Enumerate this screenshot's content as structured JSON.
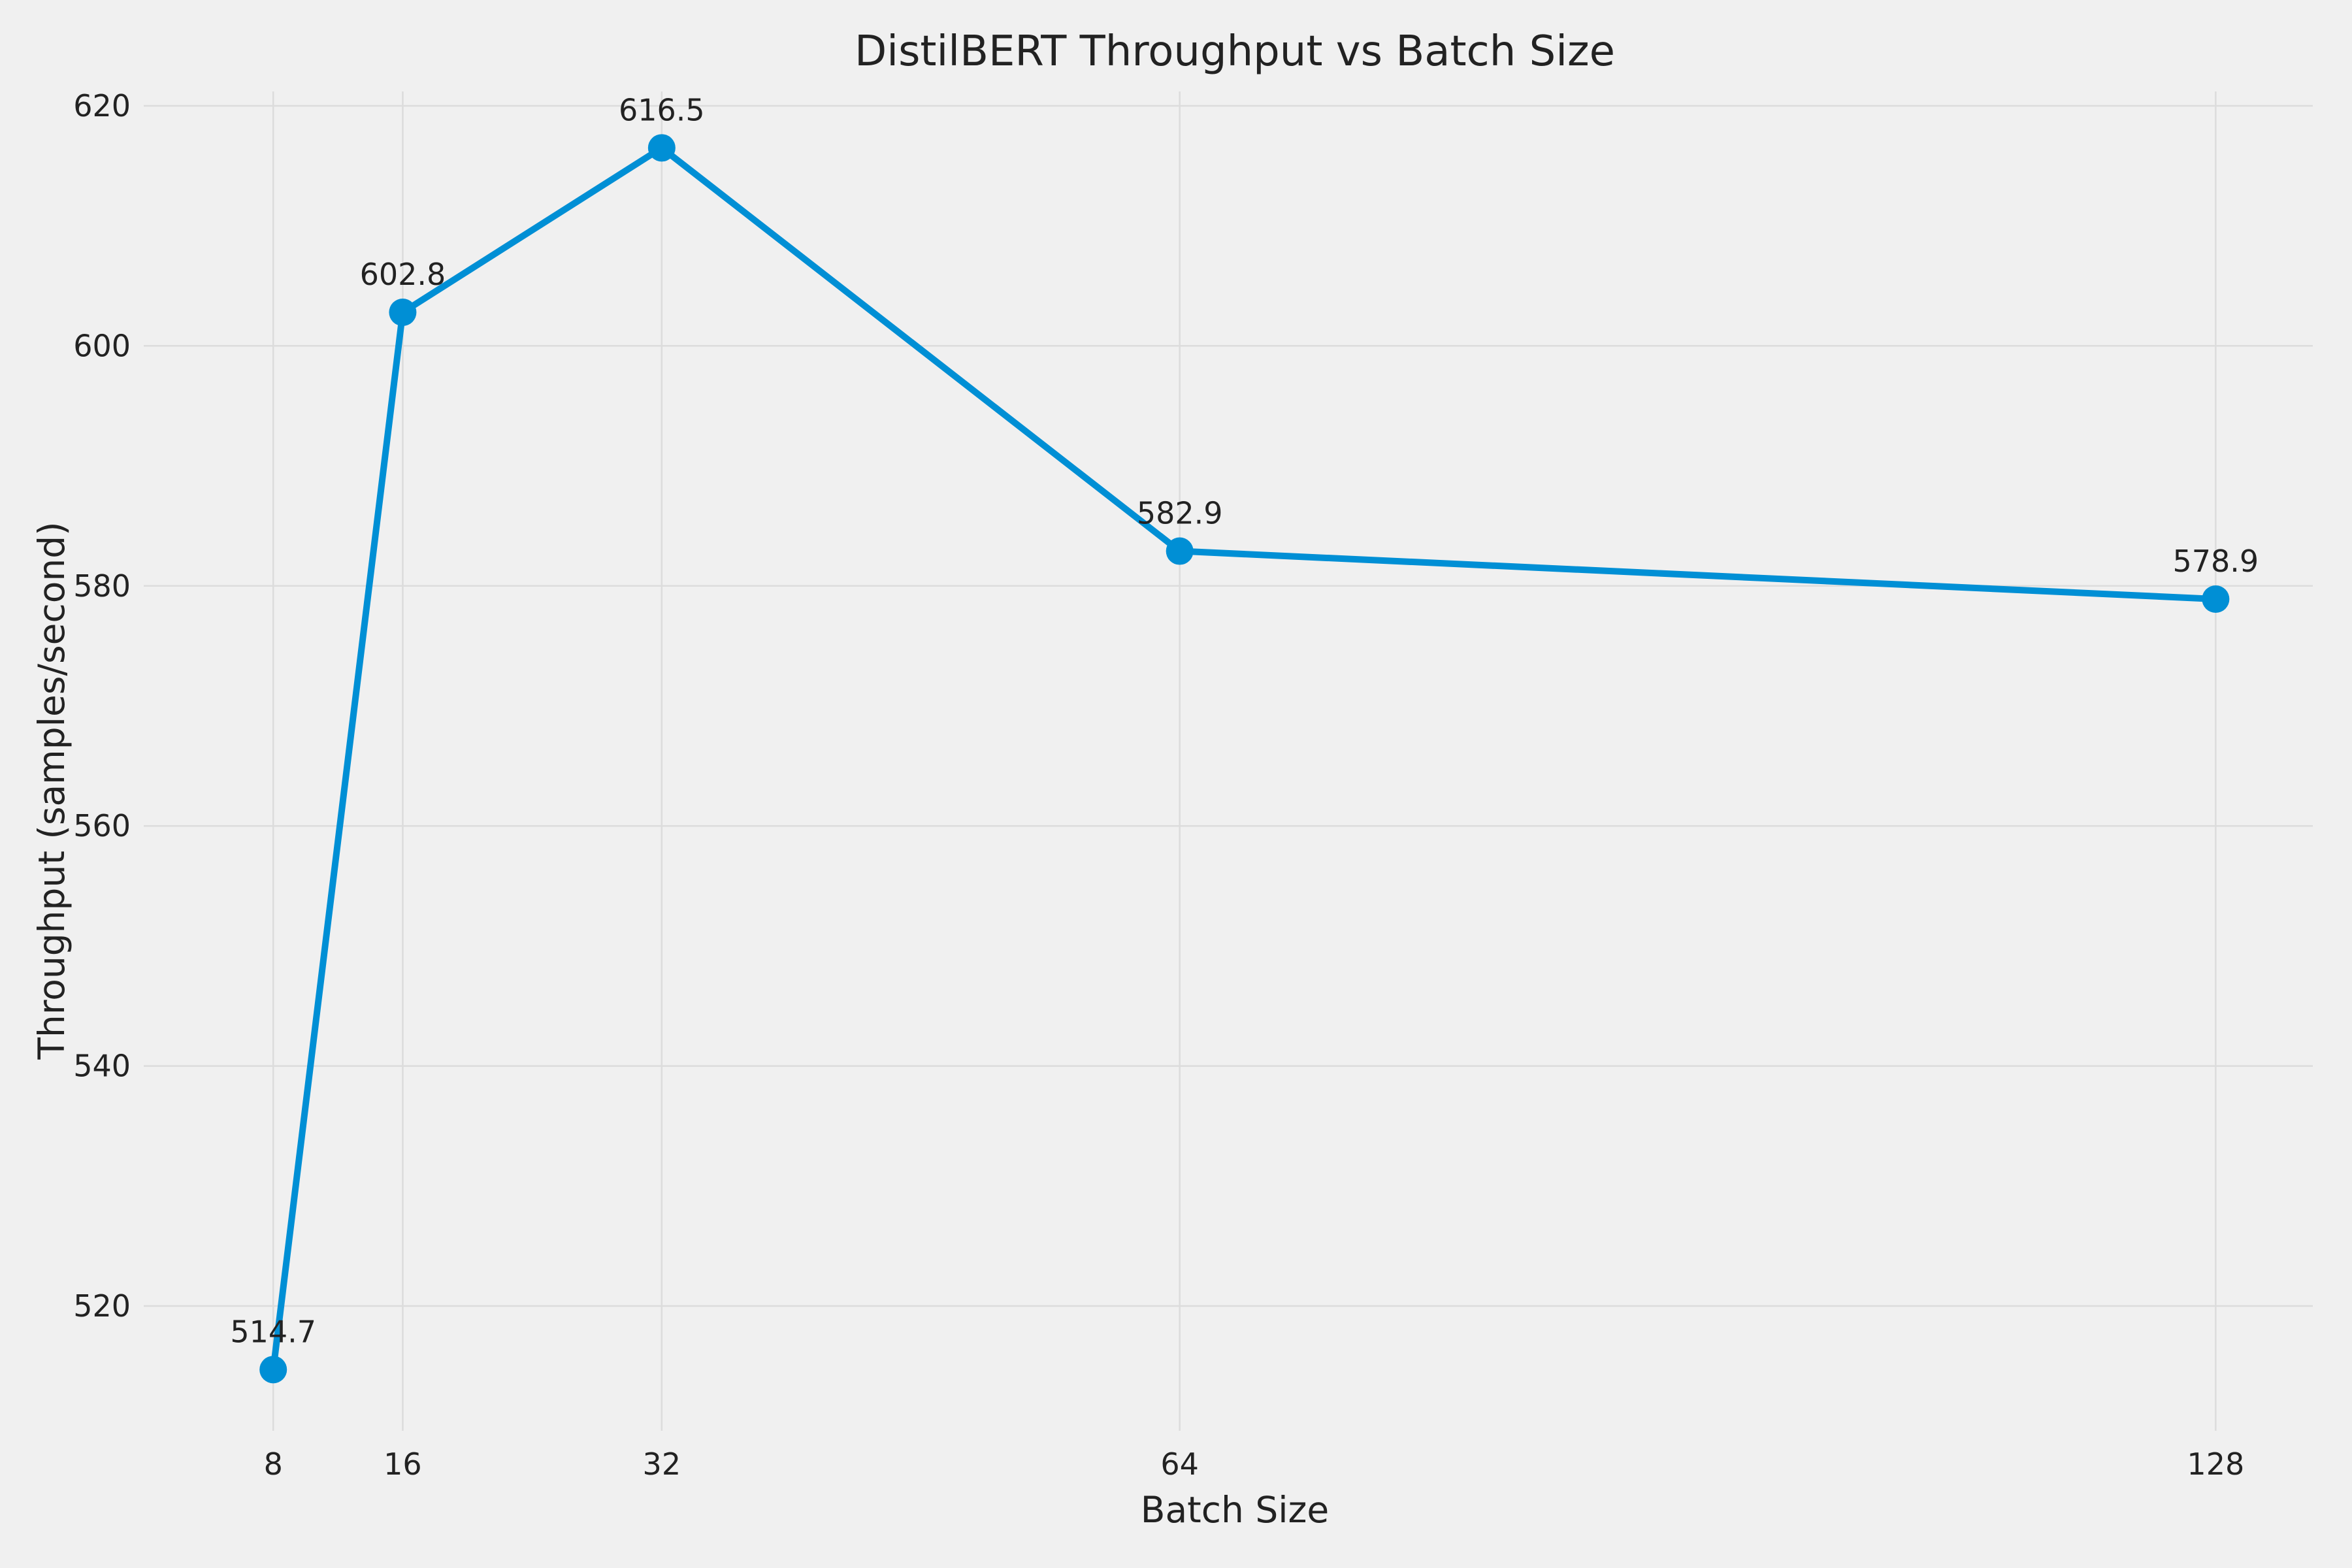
{
  "chart_data": {
    "type": "line",
    "title": "DistilBERT Throughput vs Batch Size",
    "xlabel": "Batch Size",
    "ylabel": "Throughput (samples/second)",
    "x": [
      8,
      16,
      32,
      64,
      128
    ],
    "x_tick_labels": [
      "8",
      "16",
      "32",
      "64",
      "128"
    ],
    "xlim": [
      0,
      134
    ],
    "ylim": [
      509.6,
      621.2
    ],
    "y_ticks": [
      520,
      540,
      560,
      580,
      600,
      620
    ],
    "y_tick_labels": [
      "520",
      "540",
      "560",
      "580",
      "600",
      "620"
    ],
    "series": [
      {
        "values": [
          514.7,
          602.8,
          616.5,
          582.9,
          578.9
        ],
        "data_labels": [
          "514.7",
          "602.8",
          "616.5",
          "582.9",
          "578.9"
        ],
        "color": "#008fd5"
      }
    ],
    "grid": true,
    "legend": "none"
  }
}
